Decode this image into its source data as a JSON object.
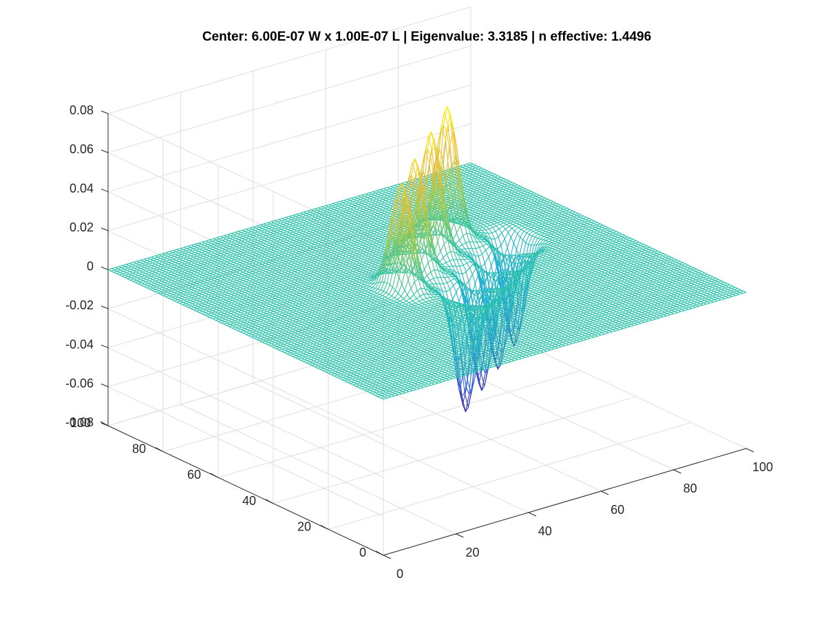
{
  "chart_data": {
    "type": "mesh",
    "title": "Center: 6.00E-07 W x 1.00E-07 L | Eigenvalue: 3.3185 | n effective: 1.4496",
    "xlabel": "",
    "ylabel": "",
    "zlabel": "",
    "xlim": [
      0,
      100
    ],
    "ylim": [
      0,
      100
    ],
    "zlim": [
      -0.08,
      0.08
    ],
    "x_ticks": [
      "0",
      "20",
      "40",
      "60",
      "80",
      "100"
    ],
    "y_ticks": [
      "0",
      "20",
      "40",
      "60",
      "80",
      "100"
    ],
    "z_ticks": [
      "-0.08",
      "-0.06",
      "-0.04",
      "-0.02",
      "0",
      "0.02",
      "0.04",
      "0.06",
      "0.08"
    ],
    "grid": true,
    "view": "3-D box, default perspective",
    "colormap": [
      "#3e26a8",
      "#2d6ff0",
      "#17a8e0",
      "#2ec4a6",
      "#9cca4f",
      "#f0bd38",
      "#f9fb15"
    ],
    "surface": {
      "description": "Four positive lobes and four negative lobes on a flat zero plane",
      "peaks": [
        {
          "x": 43,
          "y": 50,
          "z": 0.054
        },
        {
          "x": 52,
          "y": 57,
          "z": 0.057
        },
        {
          "x": 61,
          "y": 63,
          "z": 0.062
        },
        {
          "x": 70,
          "y": 69,
          "z": 0.066
        }
      ],
      "troughs": [
        {
          "x": 53,
          "y": 40,
          "z": -0.062
        },
        {
          "x": 62,
          "y": 46,
          "z": -0.06
        },
        {
          "x": 71,
          "y": 52,
          "z": -0.058
        },
        {
          "x": 80,
          "y": 58,
          "z": -0.055
        }
      ],
      "lobe_width": 2.6,
      "lobe_length": 4.5
    }
  }
}
